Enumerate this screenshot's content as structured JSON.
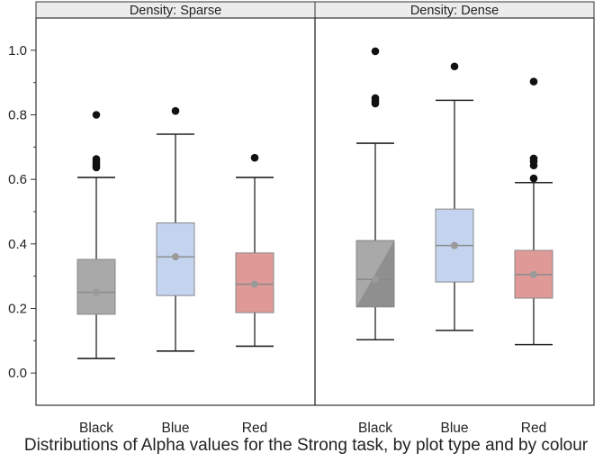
{
  "caption": "Distributions of Alpha values for the Strong task, by plot type and by colour",
  "chart_data": {
    "type": "box",
    "ylim": [
      -0.1,
      1.1
    ],
    "yticks": [
      0.0,
      0.2,
      0.4,
      0.6,
      0.8,
      1.0
    ],
    "ytick_labels": [
      "0.0",
      "0.2",
      "0.4",
      "0.6",
      "0.8",
      "1.0"
    ],
    "categories": [
      "Black",
      "Blue",
      "Red"
    ],
    "colors": {
      "Black": "#a9a9a9",
      "Blue": "#c4d3ee",
      "Red": "#df9a98",
      "Black_dark": "#8f8f8f"
    },
    "panels": [
      {
        "title": "Density: Sparse",
        "boxes": [
          {
            "category": "Black",
            "whisker_low": 0.045,
            "q1": 0.182,
            "median": 0.25,
            "q3": 0.352,
            "whisker_high": 0.606,
            "mean": 0.25,
            "outliers": [
              0.637,
              0.643,
              0.65,
              0.657,
              0.663,
              0.8
            ]
          },
          {
            "category": "Blue",
            "whisker_low": 0.068,
            "q1": 0.24,
            "median": 0.36,
            "q3": 0.465,
            "whisker_high": 0.74,
            "mean": 0.36,
            "outliers": [
              0.812
            ]
          },
          {
            "category": "Red",
            "whisker_low": 0.083,
            "q1": 0.187,
            "median": 0.275,
            "q3": 0.372,
            "whisker_high": 0.606,
            "mean": 0.275,
            "outliers": [
              0.667
            ]
          }
        ]
      },
      {
        "title": "Density: Dense",
        "boxes": [
          {
            "category": "Black",
            "whisker_low": 0.103,
            "q1": 0.205,
            "median": 0.29,
            "q3": 0.41,
            "whisker_high": 0.712,
            "mean": 0.29,
            "outliers": [
              0.835,
              0.843,
              0.852,
              0.997
            ],
            "diagonal_shading": true
          },
          {
            "category": "Blue",
            "whisker_low": 0.132,
            "q1": 0.282,
            "median": 0.395,
            "q3": 0.508,
            "whisker_high": 0.845,
            "mean": 0.395,
            "outliers": [
              0.95
            ]
          },
          {
            "category": "Red",
            "whisker_low": 0.088,
            "q1": 0.232,
            "median": 0.305,
            "q3": 0.38,
            "whisker_high": 0.59,
            "mean": 0.305,
            "outliers": [
              0.603,
              0.643,
              0.655,
              0.665,
              0.903
            ]
          }
        ]
      }
    ]
  }
}
